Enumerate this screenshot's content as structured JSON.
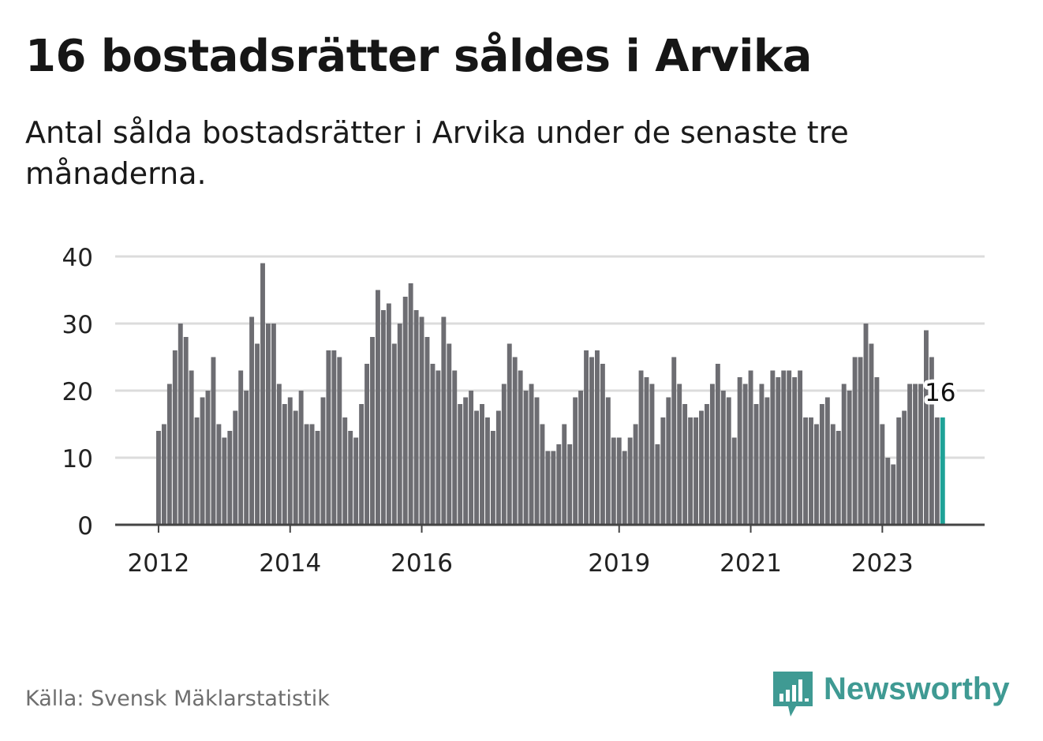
{
  "title": "16 bostadsrätter såldes i Arvika",
  "subtitle": "Antal sålda bostadsrätter i Arvika under de senaste tre månaderna.",
  "source": "Källa: Svensk Mäklarstatistik",
  "brand": {
    "name": "Newsworthy",
    "icon": "bar-chart-speech-bubble-icon",
    "color": "#3f9a93"
  },
  "colors": {
    "bar": "#6d6d72",
    "highlight": "#1ea297",
    "grid": "#dcdcdc",
    "axis": "#444444"
  },
  "chart_data": {
    "type": "bar",
    "grid": true,
    "ylim": [
      0,
      40
    ],
    "yticks": [
      "0",
      "10",
      "20",
      "30",
      "40"
    ],
    "xticks": [
      "2012",
      "2014",
      "2016",
      "2019",
      "2021",
      "2023"
    ],
    "start": "2012-01",
    "values": [
      14,
      15,
      21,
      26,
      30,
      28,
      23,
      16,
      19,
      20,
      25,
      15,
      13,
      14,
      17,
      23,
      20,
      31,
      27,
      39,
      30,
      30,
      21,
      18,
      19,
      17,
      20,
      15,
      15,
      14,
      19,
      26,
      26,
      25,
      16,
      14,
      13,
      18,
      24,
      28,
      35,
      32,
      33,
      27,
      30,
      34,
      36,
      32,
      31,
      28,
      24,
      23,
      31,
      27,
      23,
      18,
      19,
      20,
      17,
      18,
      16,
      14,
      17,
      21,
      27,
      25,
      23,
      20,
      21,
      19,
      15,
      11,
      11,
      12,
      15,
      12,
      19,
      20,
      26,
      25,
      26,
      24,
      19,
      13,
      13,
      11,
      13,
      15,
      23,
      22,
      21,
      12,
      16,
      19,
      25,
      21,
      18,
      16,
      16,
      17,
      18,
      21,
      24,
      20,
      19,
      13,
      22,
      21,
      23,
      18,
      21,
      19,
      23,
      22,
      23,
      23,
      22,
      23,
      16,
      16,
      15,
      18,
      19,
      15,
      14,
      21,
      20,
      25,
      25,
      30,
      27,
      22,
      15,
      10,
      9,
      16,
      17,
      21,
      21,
      21,
      29,
      25,
      16,
      16
    ],
    "highlight_label": "16"
  }
}
